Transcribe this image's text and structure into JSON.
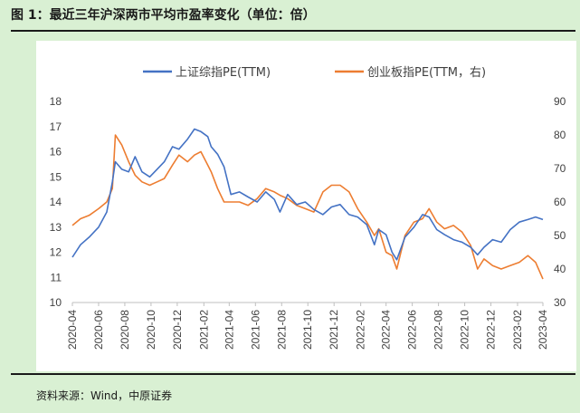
{
  "figure_title": "图 1：最近三年沪深两市平均市盈率变化（单位：倍）",
  "source": "资料来源：Wind，中原证券",
  "colors": {
    "series1": "#4472C4",
    "series2": "#ED7D31",
    "background": "#d9f0d3",
    "panel": "#ffffff"
  },
  "chart_data": {
    "type": "line",
    "legend_position": "top-center",
    "grid": false,
    "x_tick_labels": [
      "2020-04",
      "2020-06",
      "2020-08",
      "2020-10",
      "2020-12",
      "2021-02",
      "2021-04",
      "2021-06",
      "2021-08",
      "2021-10",
      "2021-12",
      "2022-02",
      "2022-04",
      "2022-06",
      "2022-08",
      "2022-10",
      "2022-12",
      "2023-02",
      "2023-04"
    ],
    "y_left": {
      "ticks": [
        "10",
        "11",
        "12",
        "13",
        "14",
        "15",
        "16",
        "17",
        "18"
      ],
      "ylim": [
        10,
        18
      ]
    },
    "y_right": {
      "ticks": [
        "30",
        "40",
        "50",
        "60",
        "70",
        "80",
        "90"
      ],
      "ylim": [
        30,
        90
      ]
    },
    "series": [
      {
        "name": "上证综指PE(TTM)",
        "axis": "left",
        "x": [
          "2020-04-01",
          "2020-04-20",
          "2020-05-10",
          "2020-06-01",
          "2020-06-20",
          "2020-07-03",
          "2020-07-10",
          "2020-07-25",
          "2020-08-10",
          "2020-08-25",
          "2020-09-10",
          "2020-09-28",
          "2020-10-15",
          "2020-11-01",
          "2020-11-20",
          "2020-12-05",
          "2020-12-25",
          "2021-01-10",
          "2021-01-25",
          "2021-02-10",
          "2021-02-18",
          "2021-03-05",
          "2021-03-20",
          "2021-04-05",
          "2021-04-25",
          "2021-05-15",
          "2021-06-05",
          "2021-06-25",
          "2021-07-15",
          "2021-07-28",
          "2021-08-15",
          "2021-09-05",
          "2021-09-25",
          "2021-10-15",
          "2021-11-05",
          "2021-11-25",
          "2021-12-15",
          "2022-01-05",
          "2022-01-25",
          "2022-02-15",
          "2022-03-05",
          "2022-03-15",
          "2022-04-01",
          "2022-04-15",
          "2022-04-26",
          "2022-05-15",
          "2022-06-05",
          "2022-06-25",
          "2022-07-10",
          "2022-07-28",
          "2022-08-15",
          "2022-09-05",
          "2022-09-25",
          "2022-10-15",
          "2022-10-31",
          "2022-11-15",
          "2022-12-05",
          "2022-12-25",
          "2023-01-15",
          "2023-02-05",
          "2023-02-25",
          "2023-03-15",
          "2023-04-01"
        ],
        "values": [
          11.8,
          12.3,
          12.6,
          13.0,
          13.6,
          14.8,
          15.6,
          15.3,
          15.2,
          15.8,
          15.2,
          15.0,
          15.3,
          15.6,
          16.2,
          16.1,
          16.5,
          16.9,
          16.8,
          16.6,
          16.2,
          15.9,
          15.4,
          14.3,
          14.4,
          14.2,
          14.0,
          14.4,
          14.1,
          13.6,
          14.3,
          13.9,
          14.0,
          13.7,
          13.5,
          13.8,
          13.9,
          13.5,
          13.4,
          13.1,
          12.3,
          12.9,
          12.7,
          12.0,
          11.7,
          12.6,
          13.0,
          13.5,
          13.4,
          12.9,
          12.7,
          12.5,
          12.4,
          12.2,
          11.9,
          12.2,
          12.5,
          12.4,
          12.9,
          13.2,
          13.3,
          13.4,
          13.3
        ]
      },
      {
        "name": "创业板指PE(TTM，右)",
        "axis": "right",
        "x": [
          "2020-04-01",
          "2020-04-20",
          "2020-05-10",
          "2020-06-01",
          "2020-06-20",
          "2020-07-03",
          "2020-07-10",
          "2020-07-25",
          "2020-08-10",
          "2020-08-25",
          "2020-09-10",
          "2020-09-28",
          "2020-10-15",
          "2020-11-01",
          "2020-11-20",
          "2020-12-05",
          "2020-12-25",
          "2021-01-10",
          "2021-01-25",
          "2021-02-10",
          "2021-02-18",
          "2021-03-05",
          "2021-03-20",
          "2021-04-05",
          "2021-04-25",
          "2021-05-15",
          "2021-06-05",
          "2021-06-25",
          "2021-07-15",
          "2021-07-28",
          "2021-08-15",
          "2021-09-05",
          "2021-09-25",
          "2021-10-15",
          "2021-11-05",
          "2021-11-25",
          "2021-12-15",
          "2022-01-05",
          "2022-01-25",
          "2022-02-15",
          "2022-03-05",
          "2022-03-15",
          "2022-04-01",
          "2022-04-15",
          "2022-04-26",
          "2022-05-15",
          "2022-06-05",
          "2022-06-25",
          "2022-07-10",
          "2022-07-28",
          "2022-08-15",
          "2022-09-05",
          "2022-09-25",
          "2022-10-15",
          "2022-10-31",
          "2022-11-15",
          "2022-12-05",
          "2022-12-25",
          "2023-01-15",
          "2023-02-05",
          "2023-02-25",
          "2023-03-15",
          "2023-04-01"
        ],
        "values": [
          53,
          55,
          56,
          58,
          60,
          64,
          80,
          77,
          72,
          68,
          66,
          65,
          66,
          67,
          71,
          74,
          72,
          74,
          75,
          71,
          69,
          64,
          60,
          60,
          60,
          59,
          61,
          64,
          63,
          62,
          61,
          59,
          58,
          57,
          63,
          65,
          65,
          63,
          58,
          54,
          50,
          52,
          45,
          44,
          40,
          50,
          54,
          55,
          58,
          54,
          52,
          53,
          51,
          47,
          40,
          43,
          41,
          40,
          41,
          42,
          44,
          42,
          37
        ]
      }
    ]
  }
}
